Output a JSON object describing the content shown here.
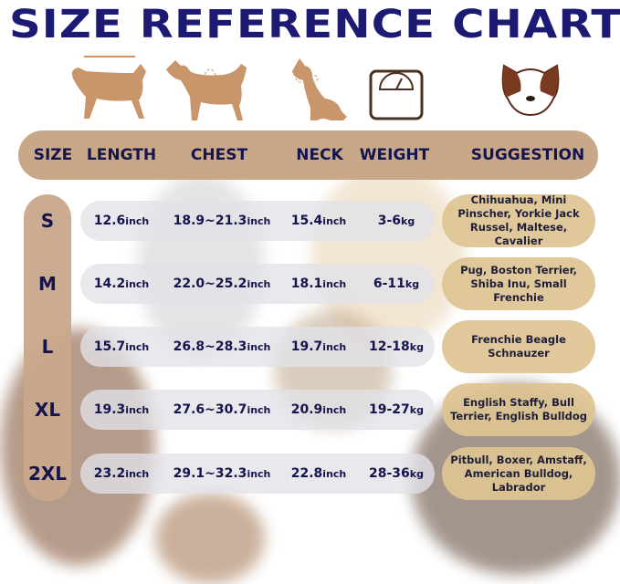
{
  "title": "SIZE REFERENCE CHART",
  "icons": [
    "dog-length-icon",
    "dog-chest-icon",
    "dog-neck-icon",
    "weight-scale-icon",
    "dog-face-icon"
  ],
  "colors": {
    "title": "#1c1a72",
    "header": "#c9a88a",
    "pill": "#dec492",
    "text": "#14144e"
  },
  "chart_data": {
    "type": "table",
    "columns": [
      "SIZE",
      "LENGTH",
      "CHEST",
      "NECK",
      "WEIGHT",
      "SUGGESTION"
    ],
    "rows": [
      {
        "size": "S",
        "length": "12.6",
        "chest": "18.9~21.3",
        "neck": "15.4",
        "weight": "3-6",
        "suggestion": "Chihuahua, Mini Pinscher, Yorkie Jack Russel, Maltese, Cavalier"
      },
      {
        "size": "M",
        "length": "14.2",
        "chest": "22.0~25.2",
        "neck": "18.1",
        "weight": "6-11",
        "suggestion": "Pug, Boston Terrier, Shiba Inu, Small Frenchie"
      },
      {
        "size": "L",
        "length": "15.7",
        "chest": "26.8~28.3",
        "neck": "19.7",
        "weight": "12-18",
        "suggestion": "Frenchie Beagle Schnauzer"
      },
      {
        "size": "XL",
        "length": "19.3",
        "chest": "27.6~30.7",
        "neck": "20.9",
        "weight": "19-27",
        "suggestion": "English Staffy, Bull Terrier, English Bulldog"
      },
      {
        "size": "2XL",
        "length": "23.2",
        "chest": "29.1~32.3",
        "neck": "22.8",
        "weight": "28-36",
        "suggestion": "Pitbull, Boxer, Amstaff, American Bulldog, Labrador"
      }
    ],
    "units": {
      "length": "inch",
      "chest": "inch",
      "neck": "inch",
      "weight": "kg"
    }
  }
}
